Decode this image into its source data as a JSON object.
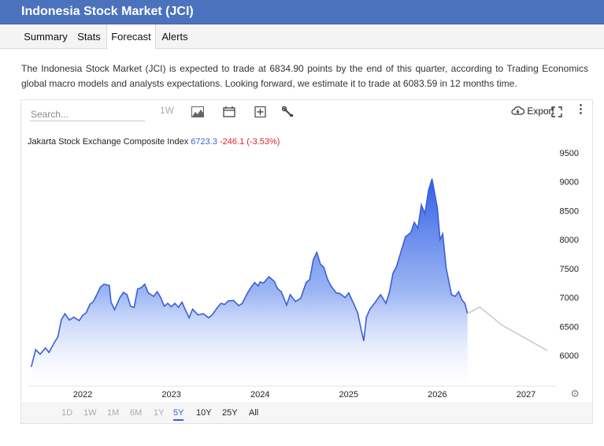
{
  "header": {
    "title": "Indonesia Stock Market (JCI)"
  },
  "tabs": [
    {
      "label": "Summary"
    },
    {
      "label": "Stats"
    },
    {
      "label": "Forecast",
      "active": true
    },
    {
      "label": "Alerts"
    }
  ],
  "description": "The Indonesia Stock Market (JCI) is expected to trade at 6834.90 points by the end of this quarter, according to Trading Economics global macro models and analysts expectations. Looking forward, we estimate it to trade at 6083.59 in 12 months time.",
  "toolbar": {
    "search_placeholder": "Search...",
    "one_week": "1W",
    "export_label": "Export",
    "icons": [
      "area-chart-icon",
      "calendar-icon",
      "add-indicator-icon",
      "wrench-icon",
      "cloud-download-icon",
      "expand-icon",
      "more-vertical-icon"
    ]
  },
  "series_label": {
    "name": "Jakarta Stock Exchange Composite Index",
    "last": "6723.3",
    "change": "-246.1 (-3.53%)"
  },
  "ranges": [
    "1D",
    "1W",
    "1M",
    "6M",
    "1Y",
    "5Y",
    "10Y",
    "25Y",
    "All"
  ],
  "active_range": "5Y",
  "colors": {
    "header": "#4a72bd",
    "line": "#3b5fd9",
    "forecast": "#c8c8c8",
    "negative": "#d9262c"
  },
  "chart_data": {
    "type": "area",
    "y_ticks": [
      9500,
      9000,
      8500,
      8000,
      7500,
      7000,
      6500,
      6000
    ],
    "x_ticks": [
      "2022",
      "2023",
      "2024",
      "2025",
      "2026",
      "2027"
    ],
    "ylim": [
      5900,
      9600
    ],
    "xlim": [
      2021.4,
      2027.3
    ],
    "series": [
      {
        "name": "Jakarta Stock Exchange Composite Index",
        "points": [
          [
            2021.42,
            5800
          ],
          [
            2021.47,
            6100
          ],
          [
            2021.52,
            6020
          ],
          [
            2021.58,
            6130
          ],
          [
            2021.62,
            6050
          ],
          [
            2021.68,
            6220
          ],
          [
            2021.72,
            6320
          ],
          [
            2021.76,
            6620
          ],
          [
            2021.8,
            6720
          ],
          [
            2021.85,
            6610
          ],
          [
            2021.9,
            6660
          ],
          [
            2021.96,
            6600
          ],
          [
            2022.0,
            6690
          ],
          [
            2022.04,
            6740
          ],
          [
            2022.08,
            6880
          ],
          [
            2022.12,
            6930
          ],
          [
            2022.16,
            7050
          ],
          [
            2022.2,
            7180
          ],
          [
            2022.24,
            7230
          ],
          [
            2022.3,
            7210
          ],
          [
            2022.32,
            6920
          ],
          [
            2022.36,
            6790
          ],
          [
            2022.42,
            7000
          ],
          [
            2022.46,
            7090
          ],
          [
            2022.5,
            7050
          ],
          [
            2022.54,
            6850
          ],
          [
            2022.58,
            6830
          ],
          [
            2022.62,
            7150
          ],
          [
            2022.66,
            7170
          ],
          [
            2022.7,
            7230
          ],
          [
            2022.74,
            7080
          ],
          [
            2022.8,
            7020
          ],
          [
            2022.84,
            7100
          ],
          [
            2022.88,
            7000
          ],
          [
            2022.92,
            6850
          ],
          [
            2022.96,
            6900
          ],
          [
            2023.0,
            6840
          ],
          [
            2023.04,
            6900
          ],
          [
            2023.08,
            6830
          ],
          [
            2023.12,
            6920
          ],
          [
            2023.16,
            6780
          ],
          [
            2023.2,
            6650
          ],
          [
            2023.24,
            6800
          ],
          [
            2023.3,
            6700
          ],
          [
            2023.36,
            6720
          ],
          [
            2023.42,
            6650
          ],
          [
            2023.46,
            6700
          ],
          [
            2023.52,
            6830
          ],
          [
            2023.56,
            6900
          ],
          [
            2023.6,
            6880
          ],
          [
            2023.64,
            6940
          ],
          [
            2023.7,
            6950
          ],
          [
            2023.76,
            6860
          ],
          [
            2023.8,
            6900
          ],
          [
            2023.86,
            7080
          ],
          [
            2023.9,
            7180
          ],
          [
            2023.94,
            7260
          ],
          [
            2023.98,
            7200
          ],
          [
            2024.0,
            7270
          ],
          [
            2024.04,
            7250
          ],
          [
            2024.1,
            7360
          ],
          [
            2024.16,
            7280
          ],
          [
            2024.2,
            7150
          ],
          [
            2024.24,
            7100
          ],
          [
            2024.3,
            6870
          ],
          [
            2024.34,
            7050
          ],
          [
            2024.4,
            6930
          ],
          [
            2024.46,
            6990
          ],
          [
            2024.52,
            7260
          ],
          [
            2024.56,
            7310
          ],
          [
            2024.6,
            7650
          ],
          [
            2024.64,
            7780
          ],
          [
            2024.68,
            7580
          ],
          [
            2024.72,
            7520
          ],
          [
            2024.76,
            7320
          ],
          [
            2024.8,
            7200
          ],
          [
            2024.86,
            7080
          ],
          [
            2024.9,
            7070
          ],
          [
            2024.96,
            7000
          ],
          [
            2025.0,
            7080
          ],
          [
            2025.06,
            6880
          ],
          [
            2025.1,
            6740
          ],
          [
            2025.14,
            6450
          ],
          [
            2025.17,
            6250
          ],
          [
            2025.2,
            6660
          ],
          [
            2025.24,
            6800
          ],
          [
            2025.3,
            6920
          ],
          [
            2025.36,
            7050
          ],
          [
            2025.42,
            6900
          ],
          [
            2025.46,
            7100
          ],
          [
            2025.5,
            7420
          ],
          [
            2025.54,
            7540
          ],
          [
            2025.6,
            7850
          ],
          [
            2025.64,
            8050
          ],
          [
            2025.7,
            8120
          ],
          [
            2025.74,
            8300
          ],
          [
            2025.78,
            8200
          ],
          [
            2025.82,
            8600
          ],
          [
            2025.86,
            8450
          ],
          [
            2025.9,
            8850
          ],
          [
            2025.94,
            9050
          ],
          [
            2025.97,
            8800
          ],
          [
            2026.0,
            8550
          ],
          [
            2026.03,
            8000
          ],
          [
            2026.06,
            8100
          ],
          [
            2026.1,
            7500
          ],
          [
            2026.16,
            7050
          ],
          [
            2026.2,
            7020
          ],
          [
            2026.24,
            7100
          ],
          [
            2026.28,
            6950
          ],
          [
            2026.31,
            6900
          ],
          [
            2026.34,
            6723
          ]
        ]
      },
      {
        "name": "Forecast",
        "points": [
          [
            2026.34,
            6723
          ],
          [
            2026.48,
            6835
          ],
          [
            2026.73,
            6520
          ],
          [
            2027.24,
            6084
          ]
        ]
      }
    ]
  }
}
